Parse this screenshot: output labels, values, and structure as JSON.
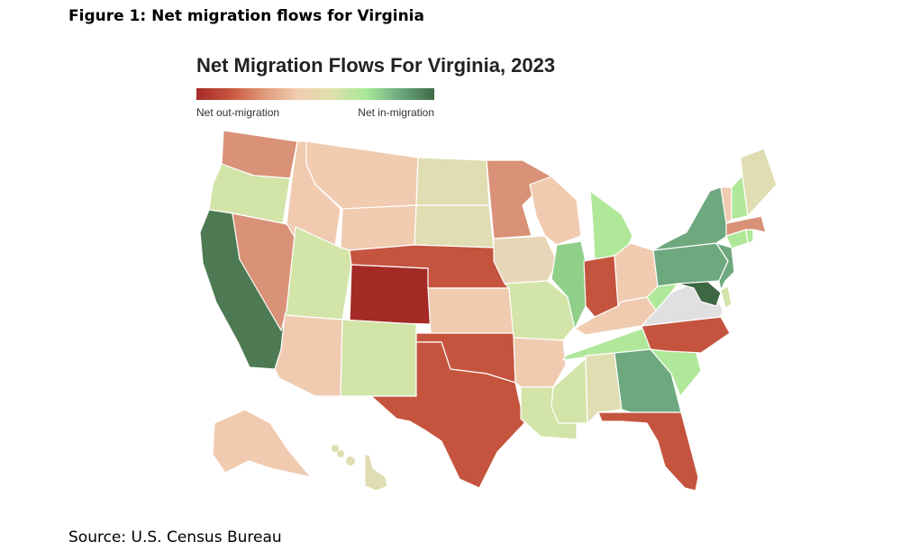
{
  "figure": {
    "caption": "Figure 1: Net migration flows for Virginia",
    "source": "Source: U.S. Census Bureau"
  },
  "map": {
    "title": "Net Migration Flows For Virginia, 2023",
    "legend": {
      "low_label": "Net out-migration",
      "high_label": "Net in-migration",
      "colors": [
        "#a52a2a",
        "#c8553d",
        "#e09a7a",
        "#f0cdb0",
        "#dfe0aa",
        "#a8e898",
        "#6aa87e",
        "#3f6b45"
      ]
    },
    "focus_state": {
      "name": "Virginia",
      "color": "#e0e0e0"
    },
    "palette": {
      "dark_red": "#a42a26",
      "red": "#c5543e",
      "salmon": "#d99177",
      "peach": "#f0cbb0",
      "tan": "#e8d6b8",
      "khaki": "#e0ddb2",
      "pale_green": "#d3e4a8",
      "light_green": "#b0e89a",
      "mid_green": "#8fcf8a",
      "green": "#6da87e",
      "dark_green": "#4d7a52",
      "darkest_green": "#3e6844",
      "gray": "#e0e0e0"
    },
    "state_colors": {
      "WA": "salmon",
      "OR": "pale_green",
      "CA": "dark_green",
      "NV": "salmon",
      "ID": "peach",
      "MT": "peach",
      "WY": "peach",
      "UT": "pale_green",
      "AZ": "peach",
      "CO": "dark_red",
      "NM": "pale_green",
      "ND": "khaki",
      "SD": "khaki",
      "NE": "red",
      "KS": "peach",
      "OK": "red",
      "TX": "red",
      "MN": "salmon",
      "IA": "tan",
      "MO": "pale_green",
      "AR": "peach",
      "LA": "pale_green",
      "WI": "peach",
      "IL": "mid_green",
      "MI": "light_green",
      "IN": "red",
      "OH": "peach",
      "KY": "peach",
      "TN": "light_green",
      "MS": "pale_green",
      "AL": "khaki",
      "GA": "green",
      "FL": "red",
      "SC": "light_green",
      "NC": "red",
      "VA": "gray",
      "WV": "light_green",
      "MD": "darkest_green",
      "DE": "pale_green",
      "PA": "green",
      "NJ": "green",
      "NY": "green",
      "CT": "light_green",
      "RI": "light_green",
      "MA": "salmon",
      "VT": "peach",
      "NH": "light_green",
      "ME": "khaki",
      "AK": "peach",
      "HI": "khaki"
    }
  }
}
